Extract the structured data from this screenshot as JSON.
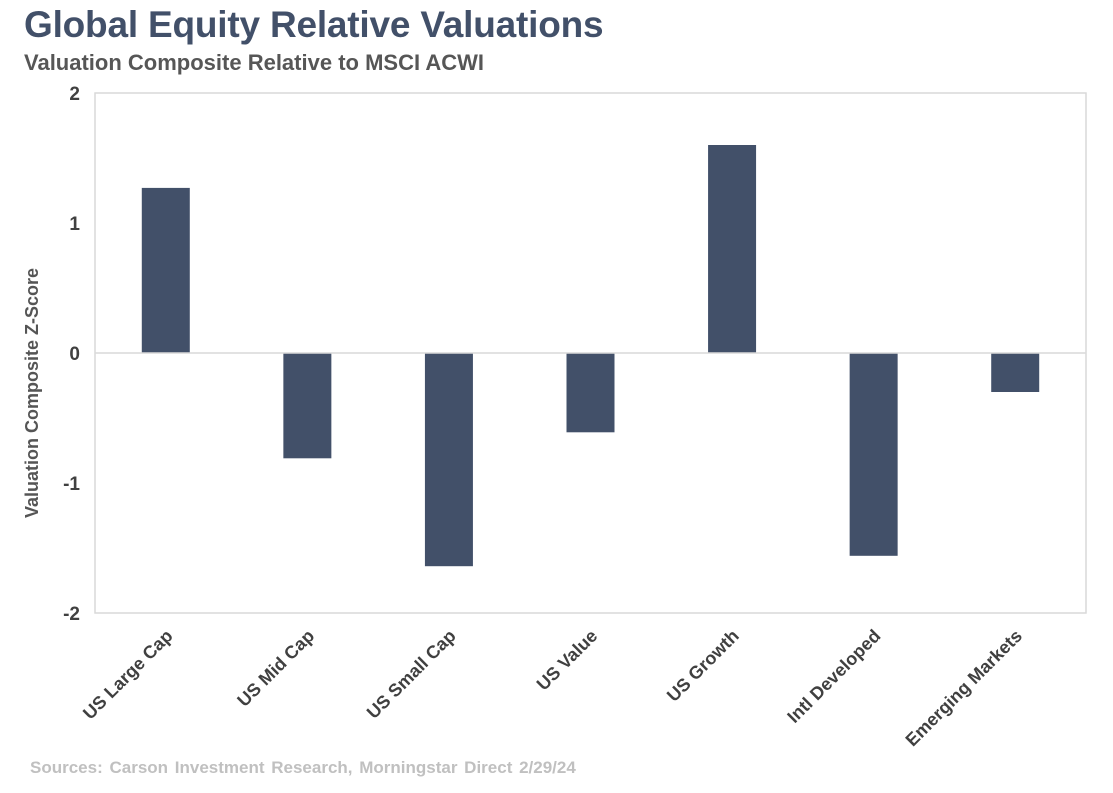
{
  "header": {
    "title": "Global Equity Relative Valuations",
    "subtitle": "Valuation Composite Relative to MSCI ACWI"
  },
  "footer": {
    "source": "Sources: Carson Investment Research, Morningstar  Direct 2/29/24"
  },
  "chart_data": {
    "type": "bar",
    "title": "Global Equity Relative Valuations",
    "subtitle": "Valuation Composite Relative to MSCI ACWI",
    "xlabel": "",
    "ylabel": "Valuation Composite Z-Score",
    "categories": [
      "US Large Cap",
      "US Mid Cap",
      "US Small Cap",
      "US Value",
      "US Growth",
      "Intl Developed",
      "Emerging Markets"
    ],
    "values": [
      1.27,
      -0.81,
      -1.64,
      -0.61,
      1.6,
      -1.56,
      -0.3
    ],
    "ylim": [
      -2,
      2
    ],
    "yticks": [
      "-2",
      "-1",
      "0",
      "1",
      "2"
    ],
    "grid": false,
    "legend": "none",
    "colors": {
      "bar": "#425069",
      "frame": "#d9d9d9",
      "zero_line": "#d9d9d9"
    }
  }
}
